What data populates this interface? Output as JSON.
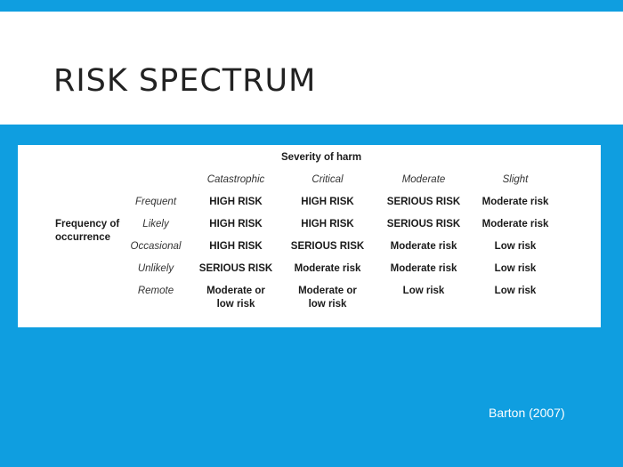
{
  "slide": {
    "title": "RISK SPECTRUM",
    "citation": "Barton (2007)"
  },
  "matrix": {
    "column_axis_label": "Severity of harm",
    "row_axis_label_line1": "Frequency of",
    "row_axis_label_line2": "occurrence",
    "columns": [
      "Catastrophic",
      "Critical",
      "Moderate",
      "Slight"
    ],
    "rows": [
      {
        "label": "Frequent",
        "cells": [
          [
            "HIGH RISK"
          ],
          [
            "HIGH RISK"
          ],
          [
            "SERIOUS RISK"
          ],
          [
            "Moderate risk"
          ]
        ]
      },
      {
        "label": "Likely",
        "cells": [
          [
            "HIGH RISK"
          ],
          [
            "HIGH RISK"
          ],
          [
            "SERIOUS RISK"
          ],
          [
            "Moderate risk"
          ]
        ]
      },
      {
        "label": "Occasional",
        "cells": [
          [
            "HIGH RISK"
          ],
          [
            "SERIOUS RISK"
          ],
          [
            "Moderate risk"
          ],
          [
            "Low risk"
          ]
        ]
      },
      {
        "label": "Unlikely",
        "cells": [
          [
            "SERIOUS RISK"
          ],
          [
            "Moderate risk"
          ],
          [
            "Moderate risk"
          ],
          [
            "Low risk"
          ]
        ]
      },
      {
        "label": "Remote",
        "cells": [
          [
            "Moderate or",
            "low risk"
          ],
          [
            "Moderate or",
            "low risk"
          ],
          [
            "Low risk"
          ],
          [
            "Low risk"
          ]
        ]
      }
    ]
  },
  "colors": {
    "background": "#0f9ee0",
    "panel": "#ffffff",
    "title_text": "#222222"
  }
}
